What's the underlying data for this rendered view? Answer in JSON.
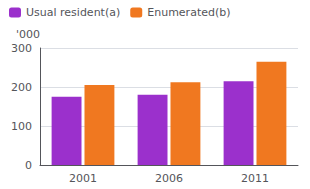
{
  "chart_data": {
    "type": "bar",
    "ylabel": "'000",
    "categories": [
      "2001",
      "2006",
      "2011"
    ],
    "series": [
      {
        "name": "Usual resident(a)",
        "color": "#9B30CC",
        "values": [
          175,
          180,
          215
        ]
      },
      {
        "name": "Enumerated(b)",
        "color": "#F07820",
        "values": [
          205,
          212,
          265
        ]
      }
    ],
    "ylim": [
      0,
      300
    ],
    "yticks": [
      0,
      100,
      200,
      300
    ],
    "grid": true,
    "legend": "upper left"
  }
}
